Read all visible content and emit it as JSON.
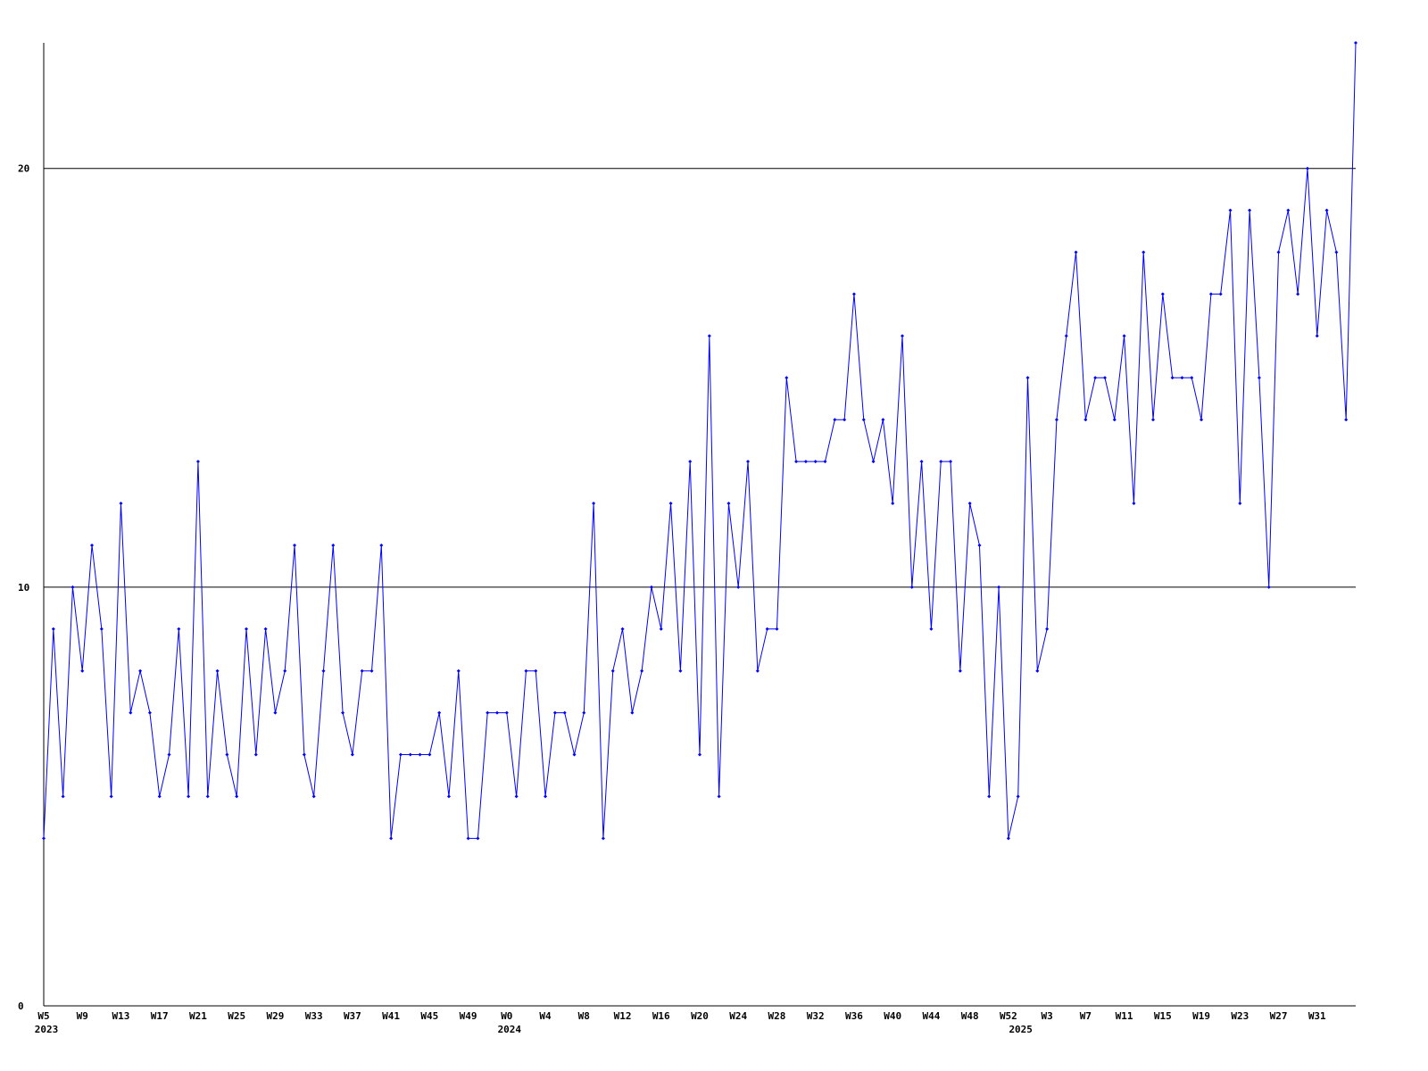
{
  "chart_data": {
    "type": "line",
    "categories": [
      "W5",
      null,
      null,
      null,
      "W9",
      null,
      null,
      null,
      "W13",
      null,
      null,
      null,
      "W17",
      null,
      null,
      null,
      "W21",
      null,
      null,
      null,
      "W25",
      null,
      null,
      null,
      "W29",
      null,
      null,
      null,
      "W33",
      null,
      null,
      null,
      "W37",
      null,
      null,
      null,
      "W41",
      null,
      null,
      null,
      "W45",
      null,
      null,
      null,
      "W49",
      null,
      null,
      null,
      "W0",
      null,
      null,
      null,
      "W4",
      null,
      null,
      null,
      "W8",
      null,
      null,
      null,
      "W12",
      null,
      null,
      null,
      "W16",
      null,
      null,
      null,
      "W20",
      null,
      null,
      null,
      "W24",
      null,
      null,
      null,
      "W28",
      null,
      null,
      null,
      "W32",
      null,
      null,
      null,
      "W36",
      null,
      null,
      null,
      "W40",
      null,
      null,
      null,
      "W44",
      null,
      null,
      null,
      "W48",
      null,
      null,
      null,
      "W52",
      null,
      null,
      null,
      "W3",
      null,
      null,
      null,
      "W7",
      null,
      null,
      null,
      "W11",
      null,
      null,
      null,
      "W15",
      null,
      null,
      null,
      "W19",
      null,
      null,
      null,
      "W23",
      null,
      null,
      null,
      "W27",
      null,
      null,
      null,
      "W31",
      null,
      null,
      null,
      null
    ],
    "years": [
      "2023",
      null,
      null,
      null,
      null,
      null,
      null,
      null,
      null,
      null,
      null,
      null,
      null,
      null,
      null,
      null,
      null,
      null,
      null,
      null,
      null,
      null,
      null,
      null,
      null,
      null,
      null,
      null,
      null,
      null,
      null,
      null,
      null,
      null,
      null,
      null,
      null,
      null,
      null,
      null,
      null,
      null,
      null,
      null,
      null,
      null,
      null,
      null,
      "2024",
      null,
      null,
      null,
      null,
      null,
      null,
      null,
      null,
      null,
      null,
      null,
      null,
      null,
      null,
      null,
      null,
      null,
      null,
      null,
      null,
      null,
      null,
      null,
      null,
      null,
      null,
      null,
      null,
      null,
      null,
      null,
      null,
      null,
      null,
      null,
      null,
      null,
      null,
      null,
      null,
      null,
      null,
      null,
      null,
      null,
      null,
      null,
      null,
      null,
      null,
      null,
      null,
      "2025",
      null,
      null,
      null,
      null,
      null,
      null,
      null,
      null,
      null,
      null,
      null,
      null,
      null,
      null,
      null,
      null,
      null,
      null,
      null,
      null,
      null,
      null,
      null,
      null,
      null,
      null,
      null,
      null,
      null,
      null,
      null,
      null,
      null,
      null,
      null
    ],
    "series": [
      {
        "color": "#0000ff",
        "values": [
          4,
          9,
          5,
          10,
          8,
          11,
          9,
          5,
          12,
          7,
          8,
          7,
          5,
          6,
          9,
          5,
          13,
          5,
          8,
          6,
          5,
          9,
          6,
          9,
          7,
          8,
          11,
          6,
          5,
          8,
          11,
          7,
          6,
          8,
          8,
          11,
          4,
          6,
          6,
          6,
          6,
          7,
          5,
          8,
          4,
          4,
          7,
          7,
          7,
          5,
          8,
          8,
          5,
          7,
          7,
          6,
          7,
          12,
          4,
          8,
          9,
          7,
          8,
          10,
          9,
          12,
          8,
          13,
          6,
          16,
          5,
          12,
          10,
          13,
          8,
          9,
          9,
          15,
          13,
          13,
          13,
          13,
          14,
          14,
          17,
          14,
          13,
          14,
          12,
          16,
          10,
          13,
          9,
          13,
          13,
          8,
          12,
          11,
          5,
          10,
          4,
          5,
          15,
          8,
          9,
          14,
          16,
          18,
          14,
          15,
          15,
          14,
          16,
          12,
          18,
          14,
          17,
          15,
          15,
          15,
          14,
          17,
          17,
          19,
          12,
          19,
          15,
          10,
          18,
          19,
          17,
          20,
          16,
          19,
          18,
          14,
          23
        ]
      }
    ],
    "ylim": [
      0,
      23
    ],
    "yticks": [
      0,
      10,
      20
    ],
    "grid": true
  }
}
